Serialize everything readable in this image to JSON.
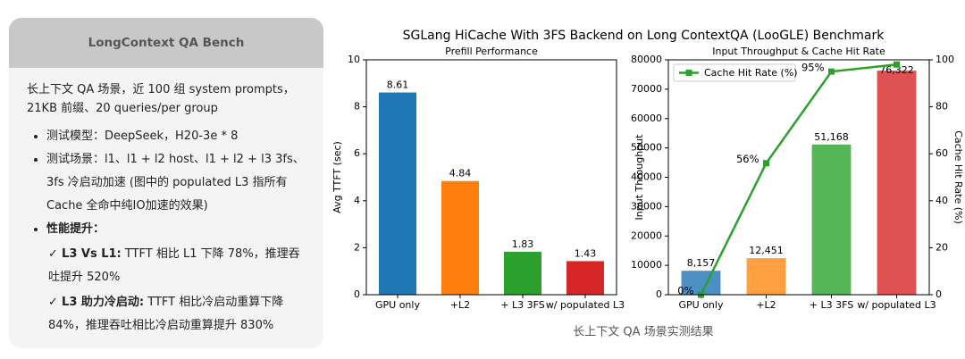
{
  "panel": {
    "title": "LongContext QA Bench",
    "intro": "长上下文 QA 场景，近 100 组 system prompts，21KB 前缀、20 queries/per group",
    "bullets": [
      "测试模型：DeepSeek，H20-3e * 8",
      "测试场景：l1、l1 + l2 host、l1 + l2 + l3 3fs、3fs 冷启动加速 (图中的 populated L3 指所有 Cache 全命中纯IO加速的效果)",
      "性能提升："
    ],
    "results": [
      {
        "label": "L3 Vs L1:",
        "text": "TTFT 相比 L1 下降 78%，推理吞吐提升 520%"
      },
      {
        "label": "L3 助力冷启动:",
        "text": "TTFT 相比冷启动重算下降 84%，推理吞吐相比冷启动重算提升 830%"
      }
    ]
  },
  "figure": {
    "title": "SGLang HiCache With 3FS Backend on Long ContextQA (LooGLE) Benchmark",
    "caption": "长上下文 QA 场景实测结果"
  },
  "chart_data": [
    {
      "type": "bar",
      "title": "Prefill Performance",
      "y_label": "Avg TTFT (sec)",
      "categories": [
        "GPU only",
        "+L2",
        "+ L3 3FS",
        "w/ populated L3"
      ],
      "values": [
        8.61,
        4.84,
        1.83,
        1.43
      ],
      "colors": [
        "#1f77b4",
        "#ff7f0e",
        "#2ca02c",
        "#d62728"
      ],
      "ylim": [
        0,
        10
      ],
      "yticks": [
        0,
        2,
        4,
        6,
        8,
        10
      ]
    },
    {
      "type": "bar",
      "title": "Input Throughput & Cache Hit Rate",
      "y_label": "Input Throughput",
      "y2_label": "Cache Hit Rate (%)",
      "categories": [
        "GPU only",
        "+L2",
        "+ L3 3FS",
        "w/ populated L3"
      ],
      "values": [
        8157,
        12451,
        51168,
        76322
      ],
      "value_labels": [
        "8,157",
        "12,451",
        "51,168",
        "76,322"
      ],
      "colors": [
        "#4c8fc3",
        "#ffa040",
        "#56b556",
        "#de5253"
      ],
      "series": [
        {
          "name": "Cache Hit Rate (%)",
          "type": "line",
          "axis": "y2",
          "color": "#2ca02c",
          "values": [
            0,
            56,
            95,
            98
          ],
          "value_labels": [
            "0%",
            "56%",
            "95%",
            null
          ]
        }
      ],
      "legend": "upper left",
      "ylim": [
        0,
        80000
      ],
      "yticks": [
        0,
        10000,
        20000,
        30000,
        40000,
        50000,
        60000,
        70000,
        80000
      ],
      "y2lim": [
        0,
        100
      ],
      "y2ticks": [
        0,
        20,
        40,
        60,
        80,
        100
      ]
    }
  ]
}
